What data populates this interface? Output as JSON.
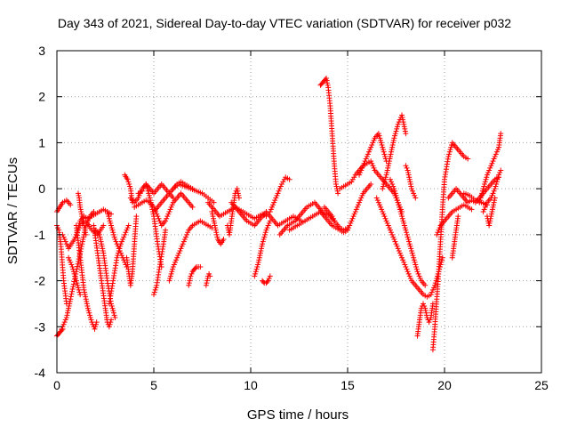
{
  "chart_data": {
    "type": "scatter",
    "title": "Day 343 of 2021, Sidereal Day-to-day VTEC variation (SDTVAR) for receiver p032",
    "xlabel": "GPS time / hours",
    "ylabel": "SDTVAR / TECUs",
    "xlim": [
      0,
      25
    ],
    "ylim": [
      -4,
      3
    ],
    "xticks": [
      0,
      5,
      10,
      15,
      20,
      25
    ],
    "yticks": [
      -4,
      -3,
      -2,
      -1,
      0,
      1,
      2,
      3
    ],
    "grid": true,
    "marker": "+",
    "marker_color": "#ff0000",
    "tracks": [
      {
        "name": "t1",
        "x": [
          0.0,
          0.15,
          0.3,
          0.5,
          0.7
        ],
        "y": [
          -0.5,
          -0.4,
          -0.3,
          -0.25,
          -0.35
        ]
      },
      {
        "name": "t2",
        "x": [
          0.0,
          0.1,
          0.2,
          0.35,
          0.5
        ],
        "y": [
          -0.8,
          -0.9,
          -1.2,
          -2.0,
          -2.5
        ]
      },
      {
        "name": "t3",
        "x": [
          0.0,
          0.1,
          0.2,
          0.3
        ],
        "y": [
          -3.2,
          -3.15,
          -3.1,
          -3.05
        ]
      },
      {
        "name": "t4",
        "x": [
          0.2,
          0.3,
          0.5,
          0.7,
          1.0,
          1.3,
          1.5,
          1.7,
          1.9
        ],
        "y": [
          -3.1,
          -3.0,
          -2.8,
          -2.4,
          -1.8,
          -1.2,
          -0.8,
          -0.6,
          -0.5
        ]
      },
      {
        "name": "t5",
        "x": [
          0.3,
          0.6,
          0.9,
          1.2,
          1.5,
          1.8,
          2.1,
          2.4
        ],
        "y": [
          -1.0,
          -1.3,
          -1.1,
          -0.8,
          -0.7,
          -0.9,
          -1.0,
          -0.8
        ]
      },
      {
        "name": "t6",
        "x": [
          1.0,
          1.2,
          1.4,
          1.6,
          1.8,
          1.95,
          2.05
        ],
        "y": [
          -0.8,
          -1.5,
          -2.2,
          -2.6,
          -2.9,
          -3.05,
          -2.9
        ]
      },
      {
        "name": "t7",
        "x": [
          1.0,
          1.2,
          1.4,
          1.6,
          1.8,
          2.0,
          2.2,
          2.4,
          2.6,
          2.8
        ],
        "y": [
          -1.0,
          -0.7,
          -0.6,
          -0.65,
          -0.6,
          -0.55,
          -0.5,
          -0.45,
          -0.5,
          -0.55
        ]
      },
      {
        "name": "t8",
        "x": [
          1.1,
          1.15,
          1.2,
          1.3,
          1.4,
          1.5
        ],
        "y": [
          -0.1,
          -0.2,
          -0.4,
          -0.6,
          -0.8,
          -1.0
        ]
      },
      {
        "name": "t9",
        "x": [
          0.6,
          0.8,
          1.0,
          1.2
        ],
        "y": [
          -1.5,
          -1.7,
          -2.0,
          -2.3
        ]
      },
      {
        "name": "t10",
        "x": [
          1.9,
          2.1,
          2.3,
          2.5,
          2.6,
          2.7,
          2.8
        ],
        "y": [
          -0.8,
          -1.4,
          -2.0,
          -2.6,
          -2.9,
          -3.0,
          -2.85
        ]
      },
      {
        "name": "t11",
        "x": [
          2.0,
          2.2,
          2.4,
          2.6,
          2.8,
          3.0
        ],
        "y": [
          -0.9,
          -1.0,
          -1.4,
          -2.0,
          -2.5,
          -2.8
        ]
      },
      {
        "name": "t12",
        "x": [
          2.6,
          2.8,
          3.0,
          3.2,
          3.4,
          3.5,
          3.6
        ],
        "y": [
          -0.5,
          -0.8,
          -1.1,
          -1.3,
          -1.5,
          -1.6,
          -1.7
        ]
      },
      {
        "name": "t13",
        "x": [
          2.7,
          2.9,
          3.1,
          3.3,
          3.5,
          3.7
        ],
        "y": [
          -2.5,
          -2.0,
          -1.5,
          -1.2,
          -1.0,
          -0.8
        ]
      },
      {
        "name": "t14",
        "x": [
          3.5,
          3.65,
          3.8,
          3.9
        ],
        "y": [
          0.3,
          0.2,
          0.0,
          -0.3
        ]
      },
      {
        "name": "t15",
        "x": [
          3.6,
          3.7,
          3.8,
          3.9,
          4.0,
          4.1
        ],
        "y": [
          -1.5,
          -1.8,
          -2.1,
          -1.8,
          -1.2,
          -0.6
        ]
      },
      {
        "name": "t16",
        "x": [
          3.8,
          4.0,
          4.2,
          4.4,
          4.6,
          4.8,
          5.0,
          5.2,
          5.4,
          5.6,
          5.8,
          6.0
        ],
        "y": [
          -0.2,
          -0.3,
          -0.2,
          0.0,
          0.1,
          0.0,
          -0.1,
          0.0,
          0.1,
          0.0,
          -0.1,
          -0.2
        ]
      },
      {
        "name": "t17",
        "x": [
          4.0,
          4.2,
          4.4,
          4.6,
          4.8,
          5.0,
          5.2,
          5.4,
          5.6,
          5.8,
          6.0,
          6.2,
          6.4,
          6.6,
          6.8,
          7.0
        ],
        "y": [
          -0.4,
          -0.35,
          -0.3,
          -0.25,
          -0.3,
          -0.4,
          -0.6,
          -0.8,
          -0.7,
          -0.5,
          -0.3,
          -0.2,
          -0.1,
          -0.2,
          -0.3,
          -0.4
        ]
      },
      {
        "name": "t18",
        "x": [
          4.2,
          4.4,
          4.6,
          4.8,
          5.0,
          5.2,
          5.4
        ],
        "y": [
          -0.1,
          -0.05,
          0.1,
          -0.2,
          -0.6,
          -1.2,
          -1.7
        ]
      },
      {
        "name": "t19",
        "x": [
          5.0,
          5.2,
          5.4,
          5.6,
          5.8,
          6.0,
          6.2,
          6.4,
          6.6,
          6.8,
          7.0
        ],
        "y": [
          -0.5,
          -0.4,
          -0.3,
          -0.2,
          -0.1,
          0.0,
          0.1,
          0.15,
          0.1,
          0.05,
          0.0
        ]
      },
      {
        "name": "t20",
        "x": [
          5.0,
          5.15,
          5.3,
          5.5,
          5.6
        ],
        "y": [
          -2.3,
          -2.1,
          -1.7,
          -1.2,
          -0.9
        ]
      },
      {
        "name": "t21",
        "x": [
          5.8,
          6.0,
          6.2,
          6.4,
          6.6,
          6.8,
          7.0,
          7.2,
          7.4,
          7.6,
          7.8,
          8.0
        ],
        "y": [
          -2.0,
          -1.7,
          -1.5,
          -1.3,
          -1.1,
          -0.9,
          -0.8,
          -0.75,
          -0.7,
          -0.75,
          -0.8,
          -0.85
        ]
      },
      {
        "name": "t22",
        "x": [
          6.0,
          6.3,
          6.6,
          6.9,
          7.2,
          7.5,
          7.8,
          8.1
        ],
        "y": [
          0.0,
          0.1,
          0.05,
          0.0,
          -0.05,
          -0.1,
          -0.2,
          -0.3
        ]
      },
      {
        "name": "t23",
        "x": [
          6.8,
          6.9,
          7.0,
          7.1,
          7.2,
          7.3,
          7.4
        ],
        "y": [
          -2.1,
          -1.9,
          -1.8,
          -1.75,
          -1.7,
          -1.7,
          -1.7
        ]
      },
      {
        "name": "t24",
        "x": [
          7.7,
          7.75,
          7.8,
          7.85,
          7.9
        ],
        "y": [
          -2.1,
          -2.0,
          -1.9,
          -1.85,
          -1.9
        ]
      },
      {
        "name": "t25",
        "x": [
          7.8,
          8.0,
          8.2,
          8.4,
          8.6,
          8.8,
          9.0,
          9.2,
          9.4,
          9.6,
          9.8,
          10.0,
          10.2,
          10.4,
          10.6,
          10.8
        ],
        "y": [
          -0.3,
          -0.4,
          -0.5,
          -0.6,
          -0.55,
          -0.5,
          -0.45,
          -0.4,
          -0.45,
          -0.5,
          -0.55,
          -0.6,
          -0.65,
          -0.6,
          -0.55,
          -0.6
        ]
      },
      {
        "name": "t26",
        "x": [
          8.0,
          8.15,
          8.3,
          8.45,
          8.6
        ],
        "y": [
          -0.5,
          -0.8,
          -1.1,
          -1.2,
          -1.1
        ]
      },
      {
        "name": "t27",
        "x": [
          8.8,
          8.9,
          9.0,
          9.1,
          9.2,
          9.3,
          9.4
        ],
        "y": [
          -0.8,
          -1.0,
          -0.7,
          -0.4,
          -0.1,
          0.0,
          -0.2
        ]
      },
      {
        "name": "t28",
        "x": [
          9.0,
          9.2,
          9.4,
          9.6,
          9.8,
          10.0,
          10.2,
          10.4,
          10.6,
          10.8,
          11.0,
          11.2,
          11.4,
          11.6,
          11.8,
          12.0,
          12.2,
          12.4,
          12.6
        ],
        "y": [
          -0.3,
          -0.4,
          -0.5,
          -0.6,
          -0.7,
          -0.75,
          -0.8,
          -0.7,
          -0.6,
          -0.5,
          -0.6,
          -0.7,
          -0.8,
          -0.75,
          -0.7,
          -0.65,
          -0.6,
          -0.65,
          -0.7
        ]
      },
      {
        "name": "t29",
        "x": [
          10.2,
          10.4,
          10.6,
          10.8,
          11.0
        ],
        "y": [
          -1.9,
          -1.6,
          -1.2,
          -0.9,
          -0.7
        ]
      },
      {
        "name": "t30",
        "x": [
          10.6,
          10.7,
          10.8,
          10.9,
          11.0
        ],
        "y": [
          -2.0,
          -2.05,
          -2.05,
          -2.0,
          -1.9
        ]
      },
      {
        "name": "t31",
        "x": [
          11.0,
          11.2,
          11.4,
          11.6,
          11.8,
          12.0
        ],
        "y": [
          -0.5,
          -0.3,
          -0.1,
          0.1,
          0.25,
          0.2
        ]
      },
      {
        "name": "t32",
        "x": [
          11.5,
          11.7,
          11.9,
          12.1,
          12.3,
          12.5,
          12.7,
          12.9,
          13.1,
          13.3,
          13.5,
          13.7,
          13.9,
          14.1,
          14.3
        ],
        "y": [
          -1.0,
          -0.9,
          -0.8,
          -0.75,
          -0.7,
          -0.6,
          -0.5,
          -0.4,
          -0.35,
          -0.3,
          -0.4,
          -0.5,
          -0.55,
          -0.6,
          -0.7
        ]
      },
      {
        "name": "t33",
        "x": [
          12.0,
          12.2,
          12.4,
          12.6,
          12.8,
          13.0,
          13.2,
          13.4,
          13.6,
          13.8,
          14.0,
          14.2,
          14.4,
          14.6,
          14.8,
          15.0
        ],
        "y": [
          -0.9,
          -0.85,
          -0.8,
          -0.75,
          -0.7,
          -0.65,
          -0.6,
          -0.55,
          -0.5,
          -0.6,
          -0.7,
          -0.8,
          -0.85,
          -0.9,
          -0.95,
          -0.9
        ]
      },
      {
        "name": "t34",
        "x": [
          13.6,
          13.7,
          13.8,
          13.9,
          14.0,
          14.1,
          14.2,
          14.3,
          14.4,
          14.5
        ],
        "y": [
          2.25,
          2.3,
          2.35,
          2.4,
          2.2,
          1.8,
          1.2,
          0.6,
          0.1,
          -0.1
        ]
      },
      {
        "name": "t35",
        "x": [
          13.8,
          14.0,
          14.2,
          14.4,
          14.6,
          14.8,
          15.0
        ],
        "y": [
          -0.4,
          -0.5,
          -0.6,
          -0.75,
          -0.85,
          -0.9,
          -0.85
        ]
      },
      {
        "name": "t36",
        "x": [
          14.6,
          14.8,
          15.0,
          15.2,
          15.4,
          15.6,
          15.8,
          16.0,
          16.2,
          16.4,
          16.6,
          16.8,
          17.0,
          17.2,
          17.4,
          17.6,
          17.8
        ],
        "y": [
          0.0,
          0.05,
          0.1,
          0.15,
          0.3,
          0.4,
          0.5,
          0.55,
          0.6,
          0.4,
          0.3,
          0.2,
          0.1,
          0.0,
          -0.1,
          -0.3,
          -0.5
        ]
      },
      {
        "name": "t37",
        "x": [
          15.0,
          15.2,
          15.4,
          15.6,
          15.8,
          16.0,
          16.2
        ],
        "y": [
          -0.9,
          -0.7,
          -0.5,
          -0.3,
          -0.1,
          0.0,
          0.1
        ]
      },
      {
        "name": "t38",
        "x": [
          15.6,
          15.8,
          16.0,
          16.2,
          16.4,
          16.6,
          16.8,
          17.0
        ],
        "y": [
          0.3,
          0.5,
          0.7,
          0.9,
          1.1,
          1.2,
          0.9,
          0.6
        ]
      },
      {
        "name": "t39",
        "x": [
          16.8,
          17.0,
          17.2,
          17.4,
          17.6,
          17.8,
          18.0
        ],
        "y": [
          0.0,
          0.3,
          0.7,
          1.1,
          1.4,
          1.6,
          1.2
        ]
      },
      {
        "name": "t40",
        "x": [
          16.5,
          16.7,
          16.9,
          17.1,
          17.3,
          17.5,
          17.7,
          17.9,
          18.1,
          18.3,
          18.5,
          18.7,
          18.9,
          19.1,
          19.3,
          19.5,
          19.7,
          19.9
        ],
        "y": [
          -0.2,
          -0.4,
          -0.6,
          -0.8,
          -1.0,
          -1.2,
          -1.4,
          -1.6,
          -1.8,
          -2.0,
          -2.1,
          -2.2,
          -2.3,
          -2.35,
          -2.3,
          -2.1,
          -1.8,
          -1.5
        ]
      },
      {
        "name": "t41",
        "x": [
          17.2,
          17.4,
          17.6,
          17.8,
          18.0,
          18.2,
          18.4,
          18.6,
          18.8,
          19.0
        ],
        "y": [
          0.2,
          0.0,
          -0.3,
          -0.6,
          -0.9,
          -1.2,
          -1.5,
          -1.8,
          -2.0,
          -2.1
        ]
      },
      {
        "name": "t42",
        "x": [
          18.0,
          18.1,
          18.2,
          18.3,
          18.4,
          18.5
        ],
        "y": [
          0.5,
          0.4,
          0.2,
          0.0,
          -0.1,
          -0.2
        ]
      },
      {
        "name": "t43",
        "x": [
          18.6,
          18.7,
          18.8,
          18.9,
          19.0,
          19.1,
          19.2,
          19.3,
          19.4
        ],
        "y": [
          -3.2,
          -2.9,
          -2.6,
          -2.5,
          -2.6,
          -2.8,
          -2.9,
          -2.8,
          -2.5
        ]
      },
      {
        "name": "t44",
        "x": [
          19.4,
          19.5,
          19.6,
          19.7,
          19.8,
          19.9,
          20.0,
          20.2,
          20.4,
          20.6
        ],
        "y": [
          -3.5,
          -3.0,
          -2.4,
          -1.8,
          -1.1,
          -0.4,
          0.2,
          0.7,
          1.0,
          0.9
        ]
      },
      {
        "name": "t45",
        "x": [
          19.6,
          19.8,
          20.0,
          20.2,
          20.4,
          20.6,
          20.8,
          21.0,
          21.2,
          21.4
        ],
        "y": [
          -1.0,
          -0.8,
          -0.7,
          -0.6,
          -0.5,
          -0.45,
          -0.4,
          -0.35,
          -0.4,
          -0.45
        ]
      },
      {
        "name": "t46",
        "x": [
          20.6,
          20.8,
          21.0,
          21.2
        ],
        "y": [
          0.9,
          0.8,
          0.7,
          0.65
        ]
      },
      {
        "name": "t47",
        "x": [
          20.2,
          20.4,
          20.6,
          20.8,
          21.0
        ],
        "y": [
          -0.2,
          -0.1,
          0.0,
          -0.1,
          -0.2
        ]
      },
      {
        "name": "t48",
        "x": [
          20.4,
          20.5,
          20.6,
          20.7
        ],
        "y": [
          -1.5,
          -1.2,
          -0.9,
          -0.6
        ]
      },
      {
        "name": "t49",
        "x": [
          21.0,
          21.2,
          21.4,
          21.6,
          21.8,
          22.0,
          22.2,
          22.4,
          22.6,
          22.8
        ],
        "y": [
          -0.2,
          -0.3,
          -0.25,
          -0.3,
          -0.2,
          -0.1,
          0.0,
          0.1,
          0.2,
          0.25
        ]
      },
      {
        "name": "t50",
        "x": [
          21.0,
          21.3,
          21.6,
          21.9,
          22.2
        ],
        "y": [
          -0.1,
          -0.15,
          -0.25,
          -0.3,
          -0.35
        ]
      },
      {
        "name": "t51",
        "x": [
          21.8,
          22.0,
          22.2,
          22.4,
          22.6,
          22.8,
          22.9
        ],
        "y": [
          -0.3,
          0.0,
          0.3,
          0.5,
          0.7,
          0.9,
          1.2
        ]
      },
      {
        "name": "t52",
        "x": [
          22.0,
          22.2,
          22.4,
          22.6,
          22.8,
          22.9
        ],
        "y": [
          -0.5,
          -0.3,
          -0.2,
          0.0,
          0.3,
          0.4
        ]
      },
      {
        "name": "t53",
        "x": [
          22.2,
          22.3,
          22.4,
          22.5,
          22.6
        ],
        "y": [
          -0.6,
          -0.8,
          -0.6,
          -0.4,
          -0.2
        ]
      }
    ]
  }
}
